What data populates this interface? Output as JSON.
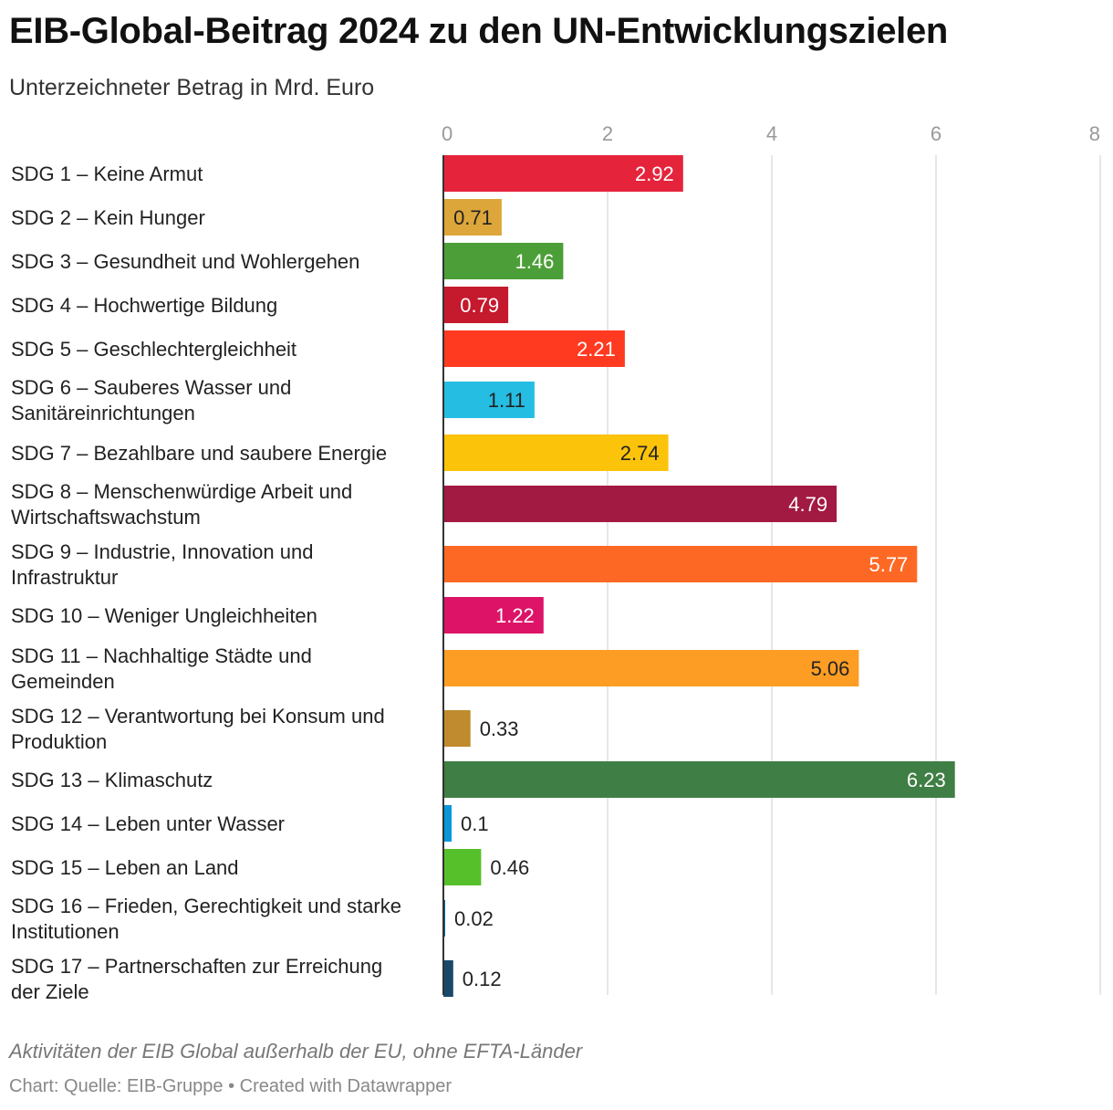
{
  "title": "EIB-Global-Beitrag 2024 zu den UN-Entwicklungszielen",
  "subtitle": "Unterzeichneter Betrag in Mrd. Euro",
  "note": "Aktivitäten der EIB Global außerhalb der EU, ohne EFTA-Länder",
  "source": "Chart: Quelle: EIB-Gruppe • Created with Datawrapper",
  "chart_data": {
    "type": "bar",
    "orientation": "horizontal",
    "title": "EIB-Global-Beitrag 2024 zu den UN-Entwicklungszielen",
    "subtitle": "Unterzeichneter Betrag in Mrd. Euro",
    "xlim": [
      0,
      8
    ],
    "xticks": [
      "0",
      "2",
      "4",
      "6",
      "8"
    ],
    "grid": true,
    "categories": [
      [
        "SDG 1 – Keine Armut"
      ],
      [
        "SDG 2 – Kein Hunger"
      ],
      [
        "SDG 3 – Gesundheit und Wohlergehen"
      ],
      [
        "SDG 4 – Hochwertige Bildung"
      ],
      [
        "SDG 5 – Geschlechtergleichheit"
      ],
      [
        "SDG 6 – Sauberes Wasser und",
        "Sanitäreinrichtungen"
      ],
      [
        "SDG 7 – Bezahlbare und saubere Energie"
      ],
      [
        "SDG 8 – Menschenwürdige Arbeit und",
        "Wirtschaftswachstum"
      ],
      [
        "SDG 9 – Industrie, Innovation und",
        "Infrastruktur"
      ],
      [
        "SDG 10 – Weniger Ungleichheiten"
      ],
      [
        "SDG 11 – Nachhaltige Städte und",
        "Gemeinden"
      ],
      [
        "SDG 12 – Verantwortung bei Konsum und",
        "Produktion"
      ],
      [
        "SDG 13 – Klimaschutz"
      ],
      [
        "SDG 14 – Leben unter Wasser"
      ],
      [
        "SDG 15 – Leben an Land"
      ],
      [
        "SDG 16 – Frieden, Gerechtigkeit und starke",
        "Institutionen"
      ],
      [
        "SDG 17 – Partnerschaften zur Erreichung",
        "der Ziele"
      ]
    ],
    "values": [
      2.92,
      0.71,
      1.46,
      0.79,
      2.21,
      1.11,
      2.74,
      4.79,
      5.77,
      1.22,
      5.06,
      0.33,
      6.23,
      0.1,
      0.46,
      0.02,
      0.12
    ],
    "value_labels": [
      "2.92",
      "0.71",
      "1.46",
      "0.79",
      "2.21",
      "1.11",
      "2.74",
      "4.79",
      "5.77",
      "1.22",
      "5.06",
      "0.33",
      "6.23",
      "0.1",
      "0.46",
      "0.02",
      "0.12"
    ],
    "colors": [
      "#e5243b",
      "#dda63a",
      "#4c9f38",
      "#c5192d",
      "#ff3a21",
      "#26bde2",
      "#fcc30b",
      "#a21942",
      "#fd6925",
      "#dd1367",
      "#fd9d24",
      "#bf8b2e",
      "#3f7e44",
      "#0a97d9",
      "#56c02b",
      "#00689d",
      "#19486a"
    ],
    "label_colors": [
      "#ffffff",
      "#222222",
      "#ffffff",
      "#ffffff",
      "#ffffff",
      "#222222",
      "#222222",
      "#ffffff",
      "#ffffff",
      "#ffffff",
      "#222222",
      "#222222",
      "#ffffff",
      "#222222",
      "#222222",
      "#222222",
      "#222222"
    ]
  }
}
